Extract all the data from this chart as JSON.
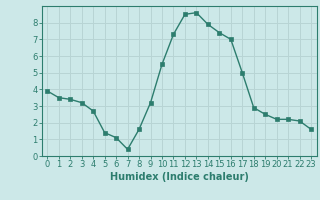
{
  "x": [
    0,
    1,
    2,
    3,
    4,
    5,
    6,
    7,
    8,
    9,
    10,
    11,
    12,
    13,
    14,
    15,
    16,
    17,
    18,
    19,
    20,
    21,
    22,
    23
  ],
  "y": [
    3.9,
    3.5,
    3.4,
    3.2,
    2.7,
    1.4,
    1.1,
    0.4,
    1.6,
    3.2,
    5.5,
    7.3,
    8.5,
    8.6,
    7.9,
    7.4,
    7.0,
    5.0,
    2.9,
    2.5,
    2.2,
    2.2,
    2.1,
    1.6
  ],
  "line_color": "#2d7d6e",
  "marker": "s",
  "markersize": 2.5,
  "linewidth": 1.0,
  "bg_color": "#cce8e8",
  "grid_color": "#b8d4d4",
  "axis_color": "#2d7d6e",
  "xlabel": "Humidex (Indice chaleur)",
  "xlabel_fontsize": 7,
  "xlim": [
    -0.5,
    23.5
  ],
  "ylim": [
    0,
    9
  ],
  "yticks": [
    0,
    1,
    2,
    3,
    4,
    5,
    6,
    7,
    8
  ],
  "xticks": [
    0,
    1,
    2,
    3,
    4,
    5,
    6,
    7,
    8,
    9,
    10,
    11,
    12,
    13,
    14,
    15,
    16,
    17,
    18,
    19,
    20,
    21,
    22,
    23
  ],
  "tick_fontsize": 6
}
